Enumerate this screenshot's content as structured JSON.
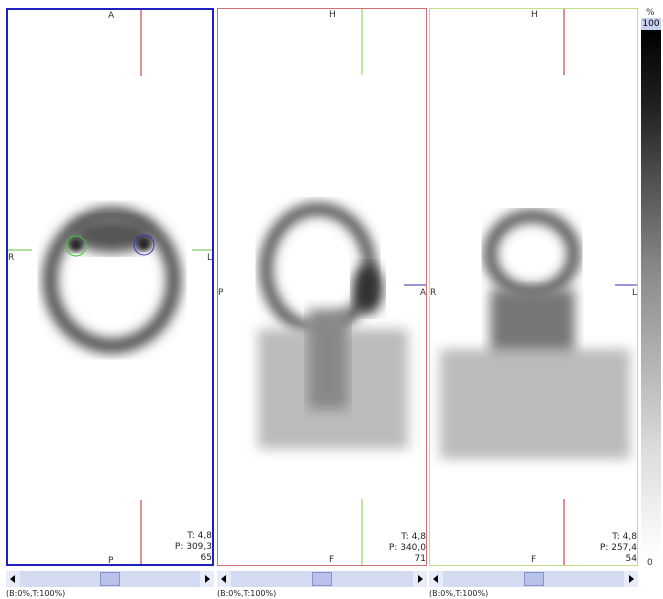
{
  "panels": [
    {
      "top": "A",
      "bottom": "P",
      "left": "R",
      "right": "L",
      "info": [
        "T: 4,8",
        "P: 309,3",
        "65"
      ],
      "status": "(B:0%,T:100%)"
    },
    {
      "top": "H",
      "bottom": "F",
      "left": "P",
      "right": "A",
      "info": [
        "T: 4,8",
        "P: 340,0",
        "71"
      ],
      "status": "(B:0%,T:100%)"
    },
    {
      "top": "H",
      "bottom": "F",
      "left": "R",
      "right": "L",
      "info": [
        "T: 4,8",
        "P: 257,4",
        "54"
      ],
      "status": "(B:0%,T:100%)"
    }
  ],
  "colorbar": {
    "unit": "%",
    "max": "100",
    "min": "0"
  }
}
